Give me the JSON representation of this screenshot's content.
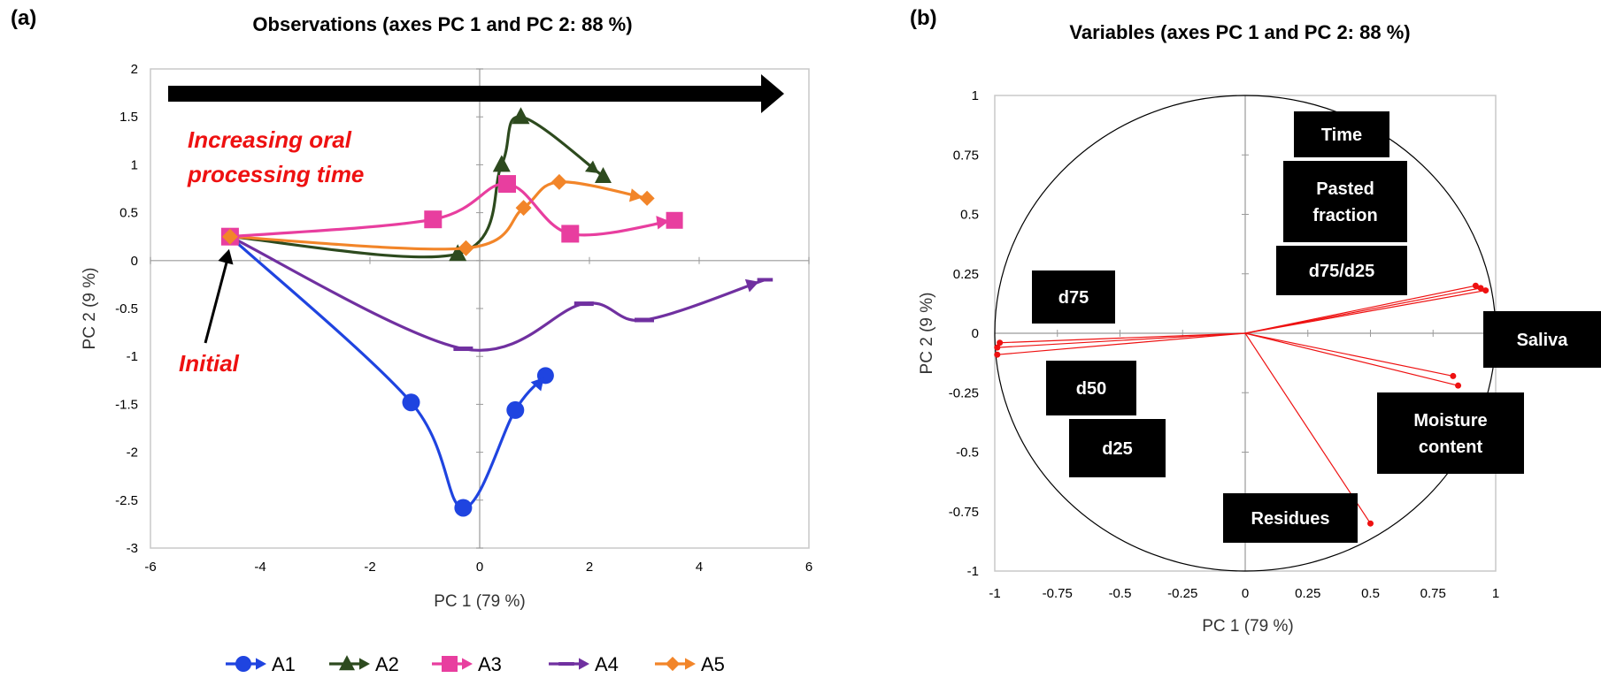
{
  "chart_data": [
    {
      "panel": "(a)",
      "type": "scatter",
      "title": "Observations (axes PC 1 and PC 2: 88 %)",
      "xlabel": "PC 1 (79 %)",
      "ylabel": "PC 2 (9 %)",
      "xlim": [
        -6,
        6
      ],
      "ylim": [
        -3,
        2
      ],
      "xticks": [
        -6,
        -4,
        -2,
        0,
        2,
        4,
        6
      ],
      "yticks": [
        -3,
        -2.5,
        -2,
        -1.5,
        -1,
        -0.5,
        0,
        0.5,
        1,
        1.5,
        2
      ],
      "grid": false,
      "legend": "bottom",
      "annotations": {
        "arrow_label_line1": "Increasing oral",
        "arrow_label_line2": "processing time",
        "initial_label": "Initial"
      },
      "series": [
        {
          "name": "A1",
          "color": "#1f44e0",
          "marker": "circle",
          "points": [
            [
              -4.55,
              0.25
            ],
            [
              -1.25,
              -1.48
            ],
            [
              -0.3,
              -2.58
            ],
            [
              0.65,
              -1.56
            ],
            [
              1.2,
              -1.2
            ]
          ]
        },
        {
          "name": "A2",
          "color": "#2d4a1e",
          "marker": "triangle",
          "points": [
            [
              -4.55,
              0.25
            ],
            [
              -0.4,
              0.07
            ],
            [
              0.4,
              1.0
            ],
            [
              0.75,
              1.5
            ],
            [
              2.25,
              0.88
            ]
          ]
        },
        {
          "name": "A3",
          "color": "#e83e9f",
          "marker": "square",
          "points": [
            [
              -4.55,
              0.25
            ],
            [
              -0.85,
              0.43
            ],
            [
              0.5,
              0.8
            ],
            [
              1.65,
              0.28
            ],
            [
              3.55,
              0.42
            ]
          ]
        },
        {
          "name": "A4",
          "color": "#7030a0",
          "marker": "dash",
          "points": [
            [
              -4.55,
              0.25
            ],
            [
              -0.3,
              -0.92
            ],
            [
              1.9,
              -0.45
            ],
            [
              3.0,
              -0.62
            ],
            [
              5.2,
              -0.2
            ]
          ]
        },
        {
          "name": "A5",
          "color": "#f28529",
          "marker": "diamond",
          "points": [
            [
              -4.55,
              0.25
            ],
            [
              -0.25,
              0.13
            ],
            [
              0.8,
              0.55
            ],
            [
              1.45,
              0.82
            ],
            [
              3.05,
              0.65
            ]
          ]
        }
      ]
    },
    {
      "panel": "(b)",
      "type": "scatter",
      "title": "Variables (axes PC 1 and PC 2: 88 %)",
      "xlabel": "PC 1 (79 %)",
      "ylabel": "PC 2 (9 %)",
      "xlim": [
        -1,
        1
      ],
      "ylim": [
        -1,
        1
      ],
      "xticks": [
        -1,
        -0.75,
        -0.5,
        -0.25,
        0,
        0.25,
        0.5,
        0.75,
        1
      ],
      "yticks": [
        -1,
        -0.75,
        -0.5,
        -0.25,
        0,
        0.25,
        0.5,
        0.75,
        1
      ],
      "correlation_circle": true,
      "vectors": [
        {
          "x": 0.92,
          "y": 0.2
        },
        {
          "x": 0.94,
          "y": 0.19
        },
        {
          "x": 0.96,
          "y": 0.18
        },
        {
          "x": -0.98,
          "y": -0.04
        },
        {
          "x": -0.99,
          "y": -0.06
        },
        {
          "x": -0.99,
          "y": -0.09
        },
        {
          "x": 0.83,
          "y": -0.18
        },
        {
          "x": 0.85,
          "y": -0.22
        },
        {
          "x": 0.5,
          "y": -0.8
        }
      ],
      "variable_labels": [
        "Time",
        "Pasted\nfraction",
        "d75/d25",
        "d75",
        "Saliva",
        "d50",
        "Moisture\ncontent",
        "d25",
        "Residues"
      ]
    }
  ]
}
